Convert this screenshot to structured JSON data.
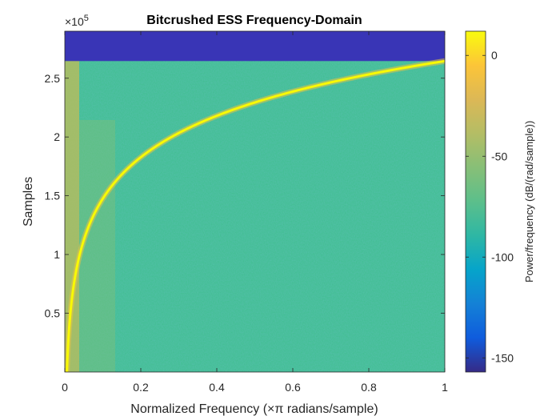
{
  "chart_data": {
    "type": "heatmap",
    "title": "Bitcrushed ESS Frequency-Domain",
    "xlabel": "Normalized Frequency (×π radians/sample)",
    "ylabel": "Samples",
    "xlim": [
      0,
      1
    ],
    "ylim": [
      0,
      290000
    ],
    "x_ticks": [
      0,
      0.2,
      0.4,
      0.6,
      0.8,
      1
    ],
    "x_tick_labels": [
      "0",
      "0.2",
      "0.4",
      "0.6",
      "0.8",
      "1"
    ],
    "y_ticks": [
      0.5,
      1,
      1.5,
      2,
      2.5
    ],
    "y_tick_labels": [
      "0.5",
      "1",
      "1.5",
      "2",
      "2.5"
    ],
    "y_exponent_label": "×10",
    "y_exponent_power": "5",
    "signal_end_sample": 264600,
    "sweep_curve": {
      "description_points_x": [
        0.0,
        0.01,
        0.02,
        0.05,
        0.1,
        0.2,
        0.4,
        0.6,
        0.8,
        1.0
      ],
      "samples": [
        0,
        60000,
        90000,
        135000,
        175000,
        210000,
        236000,
        249000,
        257000,
        264600
      ]
    },
    "colorbar": {
      "label": "Power/frequency (dB/(rad/sample))",
      "clim": [
        -157,
        12
      ],
      "ticks": [
        0,
        -50,
        -100,
        -150
      ],
      "tick_labels": [
        "0",
        "-50",
        "-100",
        "-150"
      ],
      "colormap": "parula"
    },
    "colors": {
      "background_field": "#3cbf8f",
      "empty_region": "#3a37b8",
      "sweep_line": "#f9f905"
    }
  }
}
